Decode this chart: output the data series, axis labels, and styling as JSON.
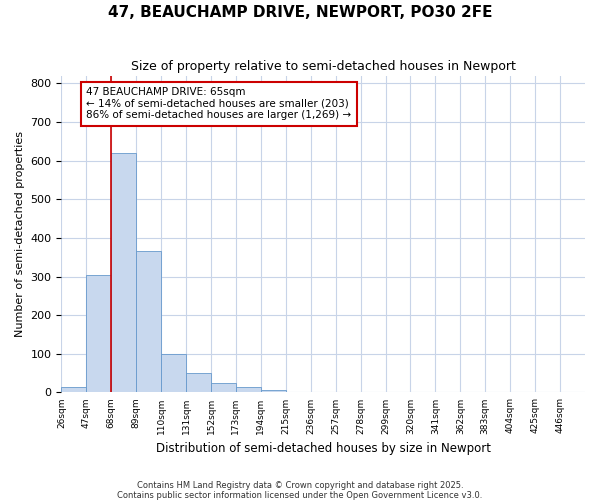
{
  "title": "47, BEAUCHAMP DRIVE, NEWPORT, PO30 2FE",
  "subtitle": "Size of property relative to semi-detached houses in Newport",
  "xlabel": "Distribution of semi-detached houses by size in Newport",
  "ylabel": "Number of semi-detached properties",
  "bin_labels": [
    "26sqm",
    "47sqm",
    "68sqm",
    "89sqm",
    "110sqm",
    "131sqm",
    "152sqm",
    "173sqm",
    "194sqm",
    "215sqm",
    "236sqm",
    "257sqm",
    "278sqm",
    "299sqm",
    "320sqm",
    "341sqm",
    "362sqm",
    "383sqm",
    "404sqm",
    "425sqm",
    "446sqm"
  ],
  "bin_edges": [
    26,
    47,
    68,
    89,
    110,
    131,
    152,
    173,
    194,
    215,
    236,
    257,
    278,
    299,
    320,
    341,
    362,
    383,
    404,
    425,
    446,
    467
  ],
  "bar_values": [
    15,
    303,
    620,
    365,
    100,
    50,
    25,
    13,
    5,
    2,
    1,
    1,
    0,
    0,
    0,
    0,
    0,
    0,
    0,
    0,
    0
  ],
  "bar_color": "#c8d8ee",
  "bar_edge_color": "#6699cc",
  "property_line_x": 68,
  "property_line_color": "#cc0000",
  "annotation_text": "47 BEAUCHAMP DRIVE: 65sqm\n← 14% of semi-detached houses are smaller (203)\n86% of semi-detached houses are larger (1,269) →",
  "annotation_box_color": "#cc0000",
  "annotation_text_color": "#000000",
  "ylim": [
    0,
    820
  ],
  "yticks": [
    0,
    100,
    200,
    300,
    400,
    500,
    600,
    700,
    800
  ],
  "background_color": "#ffffff",
  "plot_bg_color": "#ffffff",
  "grid_color": "#c8d4e8",
  "title_fontsize": 11,
  "subtitle_fontsize": 9,
  "footer_line1": "Contains HM Land Registry data © Crown copyright and database right 2025.",
  "footer_line2": "Contains public sector information licensed under the Open Government Licence v3.0."
}
